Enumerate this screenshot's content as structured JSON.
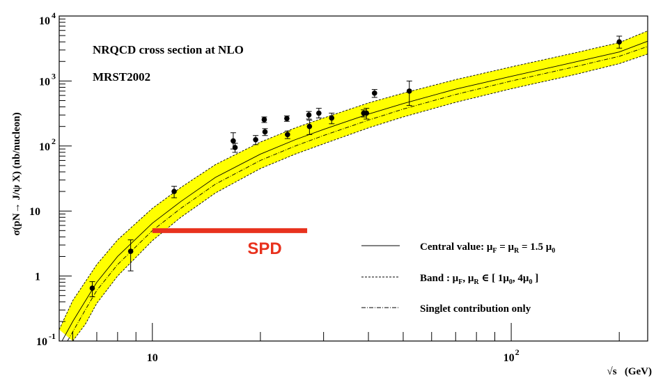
{
  "chart_data": {
    "type": "scatter",
    "xscale": "log",
    "yscale": "log",
    "xlim": [
      5.5,
      240
    ],
    "ylim": [
      0.1,
      10000
    ],
    "xlabel": "√s   (GeV)",
    "ylabel": "σ(pN→ J/ψ X)    (nb/nucleon)",
    "x_tick_labels": [
      {
        "value": 10,
        "label": "10",
        "sup": ""
      },
      {
        "value": 100,
        "label": "10",
        "sup": "2"
      }
    ],
    "y_tick_labels": [
      {
        "value": 0.1,
        "label": "10",
        "sup": "-1"
      },
      {
        "value": 1,
        "label": "1",
        "sup": ""
      },
      {
        "value": 10,
        "label": "10",
        "sup": ""
      },
      {
        "value": 100,
        "label": "10",
        "sup": "2"
      },
      {
        "value": 1000,
        "label": "10",
        "sup": "3"
      },
      {
        "value": 10000,
        "label": "10",
        "sup": "4"
      }
    ],
    "annotations": {
      "title_line1": "NRQCD cross section at NLO",
      "title_line2": "MRST2002",
      "spd_label": "SPD"
    },
    "spd_bar": {
      "x_range": [
        10,
        27
      ],
      "y": 5.0,
      "color": "#e8321e"
    },
    "band_color": "#ffff00",
    "legend": [
      {
        "style": "solid",
        "text": "Central value: μ",
        "sub1": "F",
        "mid": " = μ",
        "sub2": "R",
        "tail": " = 1.5 μ",
        "sub3": "0",
        "end": ""
      },
      {
        "style": "dashed",
        "text": "Band : μ",
        "sub1": "F",
        "mid": ", μ",
        "sub2": "R",
        "tail": " ∈ [ 1μ",
        "sub3": "0",
        "end": ", 4μ",
        "sub4": "0",
        "end2": " ]"
      },
      {
        "style": "dashdot",
        "text": "Singlet contribution only"
      }
    ],
    "series": [
      {
        "name": "Central value",
        "x": [
          5.6,
          6.0,
          7.0,
          8.0,
          10.0,
          12.0,
          15.0,
          20.0,
          25.0,
          30.0,
          40.0,
          50.0,
          70.0,
          100.0,
          150.0,
          200.0,
          240.0
        ],
        "y": [
          0.1,
          0.2,
          0.8,
          2.0,
          6.5,
          14,
          33,
          75,
          125,
          180,
          310,
          450,
          750,
          1180,
          1950,
          2800,
          4100
        ]
      },
      {
        "name": "Band upper",
        "x": [
          5.5,
          6.0,
          7.0,
          8.0,
          10.0,
          12.0,
          15.0,
          20.0,
          25.0,
          30.0,
          40.0,
          50.0,
          70.0,
          100.0,
          150.0,
          200.0,
          240.0
        ],
        "y": [
          0.15,
          0.42,
          1.5,
          3.6,
          11,
          23,
          52,
          115,
          190,
          270,
          460,
          650,
          1050,
          1650,
          2700,
          3900,
          5900
        ]
      },
      {
        "name": "Band lower",
        "x": [
          6.0,
          6.5,
          7.0,
          8.0,
          10.0,
          12.0,
          15.0,
          20.0,
          25.0,
          30.0,
          40.0,
          50.0,
          70.0,
          100.0,
          150.0,
          200.0,
          240.0
        ],
        "y": [
          0.1,
          0.18,
          0.38,
          1.0,
          3.5,
          8,
          19,
          45,
          75,
          108,
          190,
          280,
          470,
          760,
          1250,
          1850,
          2600
        ]
      },
      {
        "name": "Singlet contribution only",
        "x": [
          5.8,
          6.5,
          7.0,
          8.0,
          10.0,
          12.0,
          15.0,
          20.0,
          25.0,
          30.0,
          40.0,
          50.0,
          70.0,
          100.0,
          150.0,
          200.0,
          240.0
        ],
        "y": [
          0.1,
          0.3,
          0.6,
          1.5,
          5.0,
          11,
          26,
          60,
          100,
          145,
          250,
          370,
          620,
          1000,
          1650,
          2400,
          3400
        ]
      }
    ],
    "points": [
      {
        "x": 6.8,
        "y": 0.65,
        "lo": 0.48,
        "hi": 0.82
      },
      {
        "x": 8.7,
        "y": 2.4,
        "lo": 1.2,
        "hi": 3.6
      },
      {
        "x": 11.5,
        "y": 20,
        "lo": 16,
        "hi": 24
      },
      {
        "x": 16.8,
        "y": 120,
        "lo": 90,
        "hi": 160
      },
      {
        "x": 17.0,
        "y": 95,
        "lo": 80,
        "hi": 110
      },
      {
        "x": 19.4,
        "y": 125,
        "lo": 105,
        "hi": 145
      },
      {
        "x": 20.5,
        "y": 255,
        "lo": 230,
        "hi": 280
      },
      {
        "x": 20.6,
        "y": 165,
        "lo": 145,
        "hi": 185
      },
      {
        "x": 23.7,
        "y": 265,
        "lo": 240,
        "hi": 290
      },
      {
        "x": 23.8,
        "y": 150,
        "lo": 130,
        "hi": 170
      },
      {
        "x": 27.3,
        "y": 300,
        "lo": 260,
        "hi": 340
      },
      {
        "x": 27.4,
        "y": 200,
        "lo": 150,
        "hi": 250
      },
      {
        "x": 29.1,
        "y": 320,
        "lo": 270,
        "hi": 380
      },
      {
        "x": 31.6,
        "y": 270,
        "lo": 220,
        "hi": 320
      },
      {
        "x": 38.8,
        "y": 320,
        "lo": 280,
        "hi": 360
      },
      {
        "x": 39.5,
        "y": 320,
        "lo": 260,
        "hi": 380
      },
      {
        "x": 41.6,
        "y": 650,
        "lo": 560,
        "hi": 740
      },
      {
        "x": 52.0,
        "y": 700,
        "lo": 420,
        "hi": 1000
      },
      {
        "x": 200.0,
        "y": 4000,
        "lo": 3200,
        "hi": 4900
      }
    ]
  }
}
